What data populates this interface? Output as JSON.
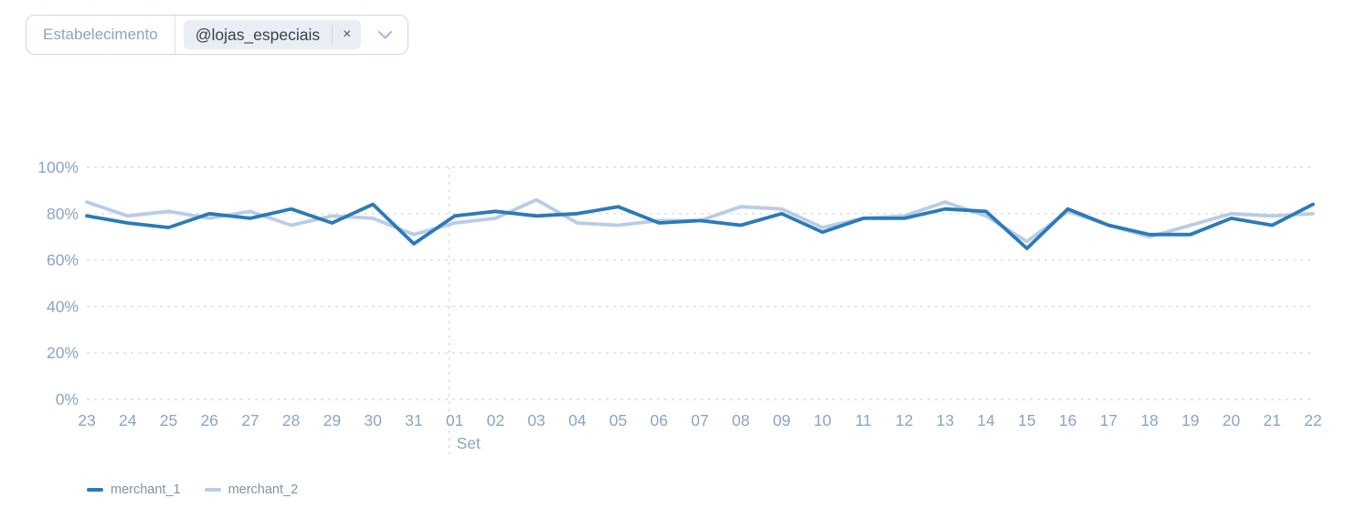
{
  "filter": {
    "label": "Estabelecimento",
    "tag": {
      "text": "@lojas_especiais",
      "remove_label": "×"
    }
  },
  "chart_data": {
    "type": "line",
    "categories": [
      "23",
      "24",
      "25",
      "26",
      "27",
      "28",
      "29",
      "30",
      "31",
      "01",
      "02",
      "03",
      "04",
      "05",
      "06",
      "07",
      "08",
      "09",
      "10",
      "11",
      "12",
      "13",
      "14",
      "15",
      "16",
      "17",
      "18",
      "19",
      "20",
      "21",
      "22"
    ],
    "series": [
      {
        "name": "merchant_1",
        "color": "#2b7ab9",
        "values": [
          79,
          76,
          74,
          80,
          78,
          82,
          76,
          84,
          67,
          79,
          81,
          79,
          80,
          83,
          76,
          77,
          75,
          80,
          72,
          78,
          78,
          82,
          81,
          65,
          82,
          75,
          71,
          71,
          78,
          75,
          84
        ]
      },
      {
        "name": "merchant_2",
        "color": "#b9cce6",
        "values": [
          85,
          79,
          81,
          78,
          81,
          75,
          79,
          78,
          71,
          76,
          78,
          86,
          76,
          75,
          77,
          77,
          83,
          82,
          74,
          78,
          79,
          85,
          79,
          68,
          81,
          75,
          70,
          75,
          80,
          79,
          80
        ]
      }
    ],
    "y_ticks": [
      0,
      20,
      40,
      60,
      80,
      100
    ],
    "y_tick_suffix": "%",
    "ylim": [
      0,
      100
    ],
    "month_separator": {
      "after_index": 8,
      "label": "Set",
      "label_at_index": 9
    },
    "grid": "horizontal-dashed",
    "legend_position": "bottom-left"
  },
  "colors": {
    "axis_label": "#8ba4c7",
    "gridline": "#dcdcdc",
    "separator": "#d9d9d9",
    "legend_text": "#7f93a9",
    "filter_border": "#ccd7e6",
    "filter_label_text": "#8aa5c6",
    "tag_background": "#e9edf4",
    "tag_text": "#39424d",
    "chevron": "#a3bddd",
    "merchant_1": "#2b7ab9",
    "merchant_2": "#b9cce6"
  }
}
